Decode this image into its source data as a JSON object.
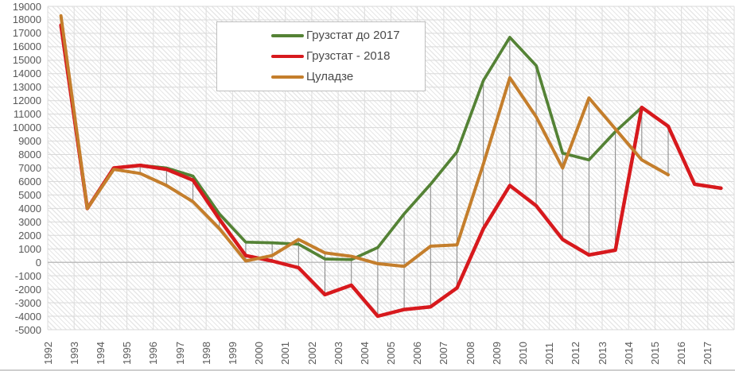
{
  "chart_data": {
    "type": "line",
    "title": "",
    "categories": [
      "1992",
      "1993",
      "1994",
      "1995",
      "1996",
      "1997",
      "1998",
      "1999",
      "2000",
      "2001",
      "2002",
      "2003",
      "2004",
      "2005",
      "2006",
      "2007",
      "2008",
      "2009",
      "2010",
      "2011",
      "2012",
      "2013",
      "2014",
      "2015",
      "2016",
      "2017"
    ],
    "series": [
      {
        "id": "gruzstat-do-2017",
        "name": "Грузстат до 2017",
        "color": "#548235",
        "stroke_width": 3.7,
        "values": [
          17600,
          4000,
          7000,
          7200,
          7000,
          6400,
          3600,
          1500,
          1450,
          1350,
          250,
          200,
          1100,
          3600,
          5800,
          8200,
          13500,
          16700,
          14600,
          8100,
          7600,
          9700,
          11500,
          null,
          null,
          null
        ]
      },
      {
        "id": "gruzstat-2018",
        "name": "Грузстат - 2018",
        "color": "#d7191d",
        "stroke_width": 4.5,
        "values": [
          17600,
          4000,
          7000,
          7200,
          6900,
          6100,
          3200,
          500,
          100,
          -400,
          -2400,
          -1700,
          -4000,
          -3500,
          -3300,
          -1900,
          2500,
          5700,
          4200,
          1700,
          550,
          900,
          11500,
          10100,
          5800,
          5500
        ]
      },
      {
        "id": "tsuladze",
        "name": "Цуладзе",
        "color": "#c47e2c",
        "stroke_width": 4,
        "values": [
          18300,
          4000,
          6900,
          6600,
          5700,
          4500,
          2500,
          100,
          500,
          1700,
          700,
          450,
          -100,
          -300,
          1200,
          1300,
          7300,
          13700,
          10800,
          7000,
          12200,
          9900,
          7600,
          6500,
          null,
          null
        ]
      }
    ],
    "y_axis": {
      "min": -5000,
      "max": 19000,
      "step": 1000
    },
    "grid": true,
    "high_low_lines": true,
    "legend_position": "top-center-box",
    "colors": {
      "gridline": "#d9d9d9",
      "vertical_gridline": "#dcdcdc",
      "zero_line": "#b0b0b0",
      "high_low_line": "#848484",
      "axis_text": "#595959"
    }
  }
}
